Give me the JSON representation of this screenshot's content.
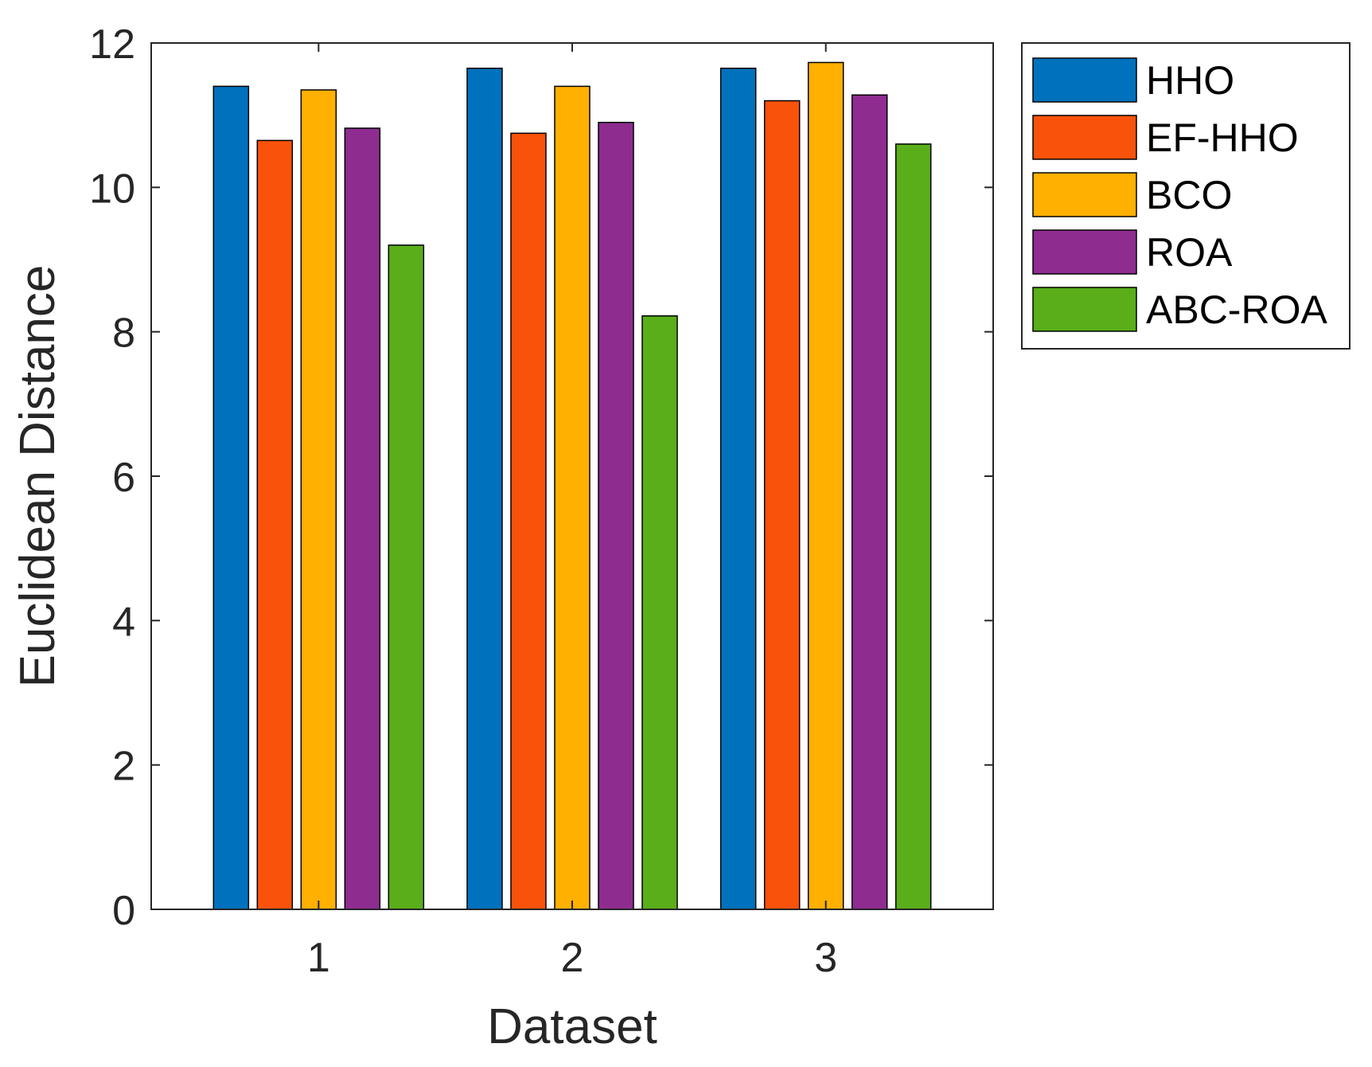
{
  "chart_data": {
    "type": "bar",
    "xlabel": "Dataset",
    "ylabel": "Euclidean Distance",
    "categories": [
      "1",
      "2",
      "3"
    ],
    "ylim": [
      0,
      12
    ],
    "yticks": [
      0,
      2,
      4,
      6,
      8,
      10,
      12
    ],
    "grid": false,
    "legend_position": "outside-top-right",
    "series": [
      {
        "name": "HHO",
        "color": "#0072BD",
        "values": [
          11.4,
          11.65,
          11.65
        ]
      },
      {
        "name": "EF-HHO",
        "color": "#F9520B",
        "values": [
          10.65,
          10.75,
          11.2
        ]
      },
      {
        "name": "BCO",
        "color": "#FFB000",
        "values": [
          11.35,
          11.4,
          11.73
        ]
      },
      {
        "name": "ROA",
        "color": "#8E2C90",
        "values": [
          10.82,
          10.9,
          11.28
        ]
      },
      {
        "name": "ABC-ROA",
        "color": "#59AE19",
        "values": [
          9.2,
          8.22,
          10.6
        ]
      }
    ]
  }
}
